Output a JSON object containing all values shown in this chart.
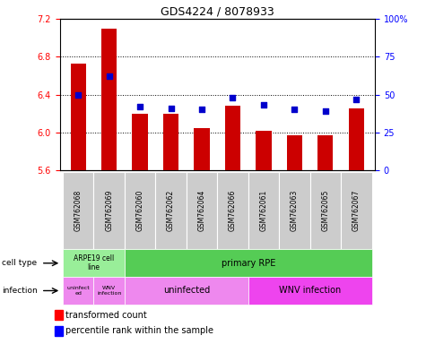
{
  "title": "GDS4224 / 8078933",
  "samples": [
    "GSM762068",
    "GSM762069",
    "GSM762060",
    "GSM762062",
    "GSM762064",
    "GSM762066",
    "GSM762061",
    "GSM762063",
    "GSM762065",
    "GSM762067"
  ],
  "transformed_counts": [
    6.73,
    7.1,
    6.2,
    6.2,
    6.05,
    6.28,
    6.02,
    5.97,
    5.97,
    6.25
  ],
  "percentile_ranks": [
    50,
    62,
    42,
    41,
    40,
    48,
    43,
    40,
    39,
    47
  ],
  "ylim": [
    5.6,
    7.2
  ],
  "yticks": [
    5.6,
    6.0,
    6.4,
    6.8,
    7.2
  ],
  "right_ylim": [
    0,
    100
  ],
  "right_yticks": [
    0,
    25,
    50,
    75,
    100
  ],
  "right_yticklabels": [
    "0",
    "25",
    "50",
    "75",
    "100%"
  ],
  "bar_color": "#cc0000",
  "dot_color": "#0000cc",
  "bar_width": 0.5,
  "cell_type_arpe_color": "#99ee99",
  "cell_type_primary_color": "#55cc55",
  "infection_light_color": "#ee88ee",
  "infection_dark_color": "#ee44ee",
  "sample_bg_color": "#cccccc",
  "gridline_values": [
    6.0,
    6.4,
    6.8
  ]
}
